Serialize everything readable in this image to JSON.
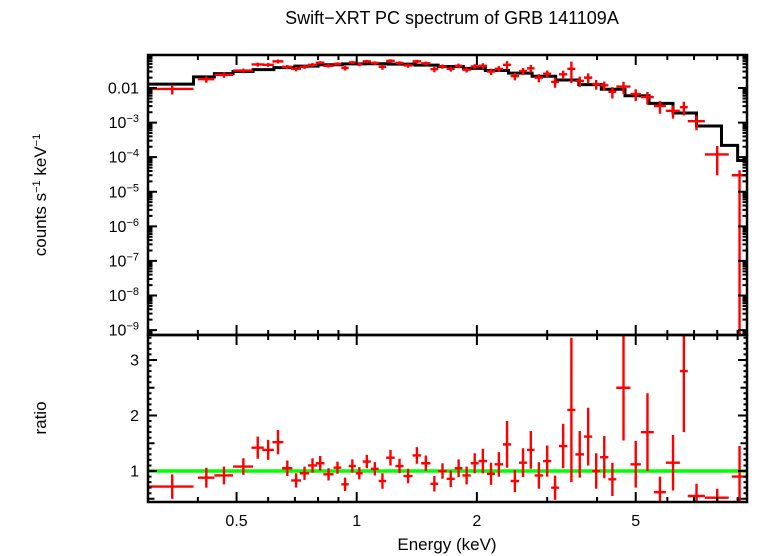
{
  "figure": {
    "background": "#ffffff",
    "frame_color": "#000000"
  },
  "chart_data": [
    {
      "id": "spectrum",
      "type": "scatter",
      "title": "Swift−XRT PC spectrum of GRB 141109A",
      "xlabel": "Energy (keV)",
      "ylabel": "counts s⁻¹ keV⁻¹",
      "ylabel_parts": [
        "counts s",
        "−1",
        " keV",
        "−1"
      ],
      "xscale": "log",
      "yscale": "log",
      "xlim": [
        0.3,
        9.5
      ],
      "ylim": [
        7.2e-10,
        0.0902
      ],
      "x_tick_labels": [
        {
          "v": 0.5,
          "text": "0.5"
        },
        {
          "v": 1,
          "text": "1"
        },
        {
          "v": 2,
          "text": "2"
        },
        {
          "v": 5,
          "text": "5"
        }
      ],
      "y_tick_labels": [
        {
          "v": 0.01,
          "text": "0.01"
        },
        {
          "v": 0.001,
          "base": "10",
          "exp": "−3"
        },
        {
          "v": 0.0001,
          "base": "10",
          "exp": "−4"
        },
        {
          "v": 1e-05,
          "base": "10",
          "exp": "−5"
        },
        {
          "v": 1e-06,
          "base": "10",
          "exp": "−6"
        },
        {
          "v": 1e-07,
          "base": "10",
          "exp": "−7"
        },
        {
          "v": 1e-08,
          "base": "10",
          "exp": "−8"
        },
        {
          "v": 1e-09,
          "base": "10",
          "exp": "−9"
        }
      ],
      "model_color": "#000000",
      "data_color": "#ff0000",
      "model_steps": [
        [
          0.3,
          0.39,
          0.013
        ],
        [
          0.39,
          0.44,
          0.021
        ],
        [
          0.44,
          0.49,
          0.026
        ],
        [
          0.49,
          0.55,
          0.03
        ],
        [
          0.55,
          0.62,
          0.034
        ],
        [
          0.62,
          0.7,
          0.039
        ],
        [
          0.7,
          0.8,
          0.043
        ],
        [
          0.8,
          0.92,
          0.047
        ],
        [
          0.92,
          1.05,
          0.05
        ],
        [
          1.05,
          1.2,
          0.0505
        ],
        [
          1.2,
          1.4,
          0.049
        ],
        [
          1.4,
          1.6,
          0.046
        ],
        [
          1.6,
          1.85,
          0.042
        ],
        [
          1.85,
          2.1,
          0.037
        ],
        [
          2.1,
          2.4,
          0.032
        ],
        [
          2.4,
          2.75,
          0.027
        ],
        [
          2.75,
          3.15,
          0.022
        ],
        [
          3.15,
          3.6,
          0.017
        ],
        [
          3.6,
          4.1,
          0.0125
        ],
        [
          4.1,
          4.7,
          0.0092
        ],
        [
          4.7,
          5.4,
          0.006
        ],
        [
          5.4,
          6.2,
          0.0036
        ],
        [
          6.2,
          7.1,
          0.0019
        ],
        [
          7.1,
          8.2,
          0.0008
        ],
        [
          8.2,
          9.0,
          0.00022
        ],
        [
          9.0,
          9.5,
          8e-05
        ]
      ],
      "points_format": [
        "energy_keV",
        "denergy_keV",
        "rate_cts_s_keV",
        "rate_err",
        "ratio",
        "ratio_err"
      ],
      "points": [
        [
          0.345,
          0.045,
          0.0094,
          0.0029,
          0.72,
          0.22
        ],
        [
          0.42,
          0.02,
          0.018,
          0.0038,
          0.88,
          0.18
        ],
        [
          0.465,
          0.025,
          0.024,
          0.0042,
          0.92,
          0.16
        ],
        [
          0.52,
          0.03,
          0.032,
          0.0045,
          1.08,
          0.15
        ],
        [
          0.565,
          0.02,
          0.048,
          0.0065,
          1.42,
          0.2
        ],
        [
          0.6,
          0.02,
          0.047,
          0.006,
          1.38,
          0.18
        ],
        [
          0.635,
          0.02,
          0.059,
          0.008,
          1.52,
          0.22
        ],
        [
          0.67,
          0.02,
          0.041,
          0.0055,
          1.05,
          0.14
        ],
        [
          0.705,
          0.02,
          0.036,
          0.0056,
          0.83,
          0.13
        ],
        [
          0.74,
          0.02,
          0.041,
          0.0052,
          0.96,
          0.12
        ],
        [
          0.775,
          0.02,
          0.047,
          0.0056,
          1.1,
          0.13
        ],
        [
          0.81,
          0.02,
          0.054,
          0.0061,
          1.14,
          0.13
        ],
        [
          0.85,
          0.025,
          0.044,
          0.0052,
          0.94,
          0.11
        ],
        [
          0.895,
          0.02,
          0.05,
          0.0052,
          1.06,
          0.11
        ],
        [
          0.935,
          0.02,
          0.038,
          0.006,
          0.76,
          0.12
        ],
        [
          0.975,
          0.02,
          0.055,
          0.006,
          1.09,
          0.12
        ],
        [
          1.015,
          0.02,
          0.048,
          0.0055,
          0.96,
          0.11
        ],
        [
          1.06,
          0.025,
          0.059,
          0.0061,
          1.17,
          0.12
        ],
        [
          1.11,
          0.025,
          0.053,
          0.0061,
          1.04,
          0.12
        ],
        [
          1.16,
          0.025,
          0.041,
          0.0071,
          0.82,
          0.14
        ],
        [
          1.215,
          0.03,
          0.061,
          0.0069,
          1.24,
          0.14
        ],
        [
          1.28,
          0.03,
          0.053,
          0.0064,
          1.09,
          0.13
        ],
        [
          1.345,
          0.035,
          0.045,
          0.0064,
          0.91,
          0.13
        ],
        [
          1.415,
          0.035,
          0.059,
          0.0069,
          1.28,
          0.15
        ],
        [
          1.49,
          0.04,
          0.052,
          0.0064,
          1.14,
          0.14
        ],
        [
          1.565,
          0.035,
          0.035,
          0.0064,
          0.77,
          0.14
        ],
        [
          1.64,
          0.04,
          0.042,
          0.0059,
          1.0,
          0.14
        ],
        [
          1.72,
          0.04,
          0.036,
          0.0063,
          0.86,
          0.15
        ],
        [
          1.8,
          0.04,
          0.044,
          0.0067,
          1.05,
          0.16
        ],
        [
          1.885,
          0.045,
          0.034,
          0.0059,
          0.92,
          0.16
        ],
        [
          1.975,
          0.045,
          0.042,
          0.0067,
          1.14,
          0.18
        ],
        [
          2.07,
          0.05,
          0.044,
          0.0081,
          1.18,
          0.22
        ],
        [
          2.17,
          0.05,
          0.03,
          0.0064,
          0.95,
          0.2
        ],
        [
          2.27,
          0.055,
          0.036,
          0.007,
          1.12,
          0.22
        ],
        [
          2.38,
          0.055,
          0.047,
          0.013,
          1.48,
          0.42
        ],
        [
          2.49,
          0.06,
          0.022,
          0.0054,
          0.82,
          0.2
        ],
        [
          2.61,
          0.06,
          0.031,
          0.007,
          1.15,
          0.26
        ],
        [
          2.73,
          0.06,
          0.037,
          0.0092,
          1.38,
          0.34
        ],
        [
          2.86,
          0.07,
          0.02,
          0.0053,
          0.92,
          0.24
        ],
        [
          3.0,
          0.07,
          0.026,
          0.0062,
          1.18,
          0.28
        ],
        [
          3.14,
          0.07,
          0.015,
          0.0048,
          0.7,
          0.22
        ],
        [
          3.29,
          0.08,
          0.025,
          0.0068,
          1.45,
          0.4
        ],
        [
          3.45,
          0.08,
          0.036,
          0.022,
          2.1,
          1.3
        ],
        [
          3.62,
          0.09,
          0.016,
          0.0053,
          1.3,
          0.42
        ],
        [
          3.8,
          0.09,
          0.02,
          0.0065,
          1.62,
          0.52
        ],
        [
          3.98,
          0.09,
          0.013,
          0.004,
          1.0,
          0.32
        ],
        [
          4.17,
          0.1,
          0.012,
          0.0035,
          1.25,
          0.38
        ],
        [
          4.37,
          0.1,
          0.0078,
          0.0028,
          0.85,
          0.3
        ],
        [
          4.66,
          0.19,
          0.011,
          0.0042,
          2.5,
          0.95
        ],
        [
          5.0,
          0.15,
          0.0067,
          0.0025,
          1.12,
          0.42
        ],
        [
          5.35,
          0.2,
          0.0055,
          0.0022,
          1.7,
          0.7
        ],
        [
          5.75,
          0.2,
          0.003,
          0.0012,
          0.62,
          0.28
        ],
        [
          6.2,
          0.25,
          0.0022,
          0.0009,
          1.15,
          0.5
        ],
        [
          6.6,
          0.15,
          0.0028,
          0.0012,
          2.8,
          1.1
        ],
        [
          7.1,
          0.35,
          0.0011,
          0.0005,
          0.55,
          0.22
        ],
        [
          8.0,
          0.55,
          0.00012,
          9e-05,
          0.52,
          0.16
        ],
        [
          9.1,
          0.4,
          3e-05,
          1.2e-05,
          0.9,
          0.55
        ]
      ],
      "last_point_lower_error_to_floor": true,
      "grid": false,
      "legend": false
    },
    {
      "id": "ratio",
      "type": "scatter",
      "ylabel": "ratio",
      "yscale": "linear",
      "x_shared_with": "spectrum",
      "ylim": [
        0.442,
        3.45
      ],
      "y_tick_labels": [
        {
          "v": 1,
          "text": "1"
        },
        {
          "v": 2,
          "text": "2"
        },
        {
          "v": 3,
          "text": "3"
        }
      ],
      "reference_line": {
        "y": 1,
        "color": "#00ff00"
      },
      "data_color": "#ff0000"
    }
  ]
}
